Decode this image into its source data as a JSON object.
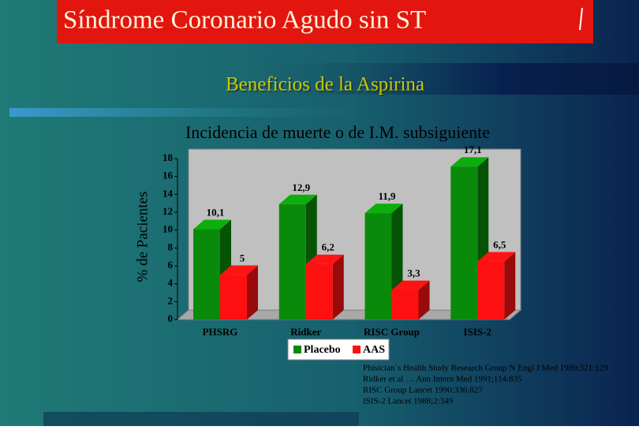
{
  "header": {
    "title": "Síndrome Coronario Agudo sin ST",
    "subtitle": "Beneficios de la Aspirina"
  },
  "chart_data": {
    "type": "bar3d",
    "title": "Incidencia de muerte o de I.M. subsiguiente",
    "y_label": "% de Pacientes",
    "categories": [
      "PHSRG",
      "Ridker",
      "RISC Group",
      "ISIS-2"
    ],
    "series": [
      {
        "name": "Placebo",
        "color": "#0a8a0a",
        "values": [
          10.1,
          12.9,
          11.9,
          17.1
        ],
        "value_labels": [
          "10,1",
          "12,9",
          "11,9",
          "17,1"
        ]
      },
      {
        "name": "AAS",
        "color": "#ff1010",
        "values": [
          5,
          6.2,
          3.3,
          6.5
        ],
        "value_labels": [
          "5",
          "6,2",
          "3,3",
          "6,5"
        ]
      }
    ],
    "ylim": [
      0,
      18
    ],
    "yticks": [
      0,
      2,
      4,
      6,
      8,
      10,
      12,
      14,
      16,
      18
    ],
    "grid": false
  },
  "references": [
    "Phisician´s Health Study Research Group  N Engl J Med 1989;321:129",
    "Ridker et al …  Ann Intern Med  1991;114:835",
    "RISC Group   Lancet 1990;336:827",
    "ISIS-2   Lancet 1988;2:349"
  ]
}
